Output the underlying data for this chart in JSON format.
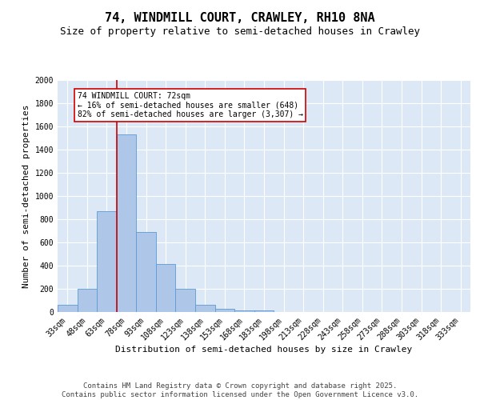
{
  "title1": "74, WINDMILL COURT, CRAWLEY, RH10 8NA",
  "title2": "Size of property relative to semi-detached houses in Crawley",
  "xlabel": "Distribution of semi-detached houses by size in Crawley",
  "ylabel": "Number of semi-detached properties",
  "categories": [
    "33sqm",
    "48sqm",
    "63sqm",
    "78sqm",
    "93sqm",
    "108sqm",
    "123sqm",
    "138sqm",
    "153sqm",
    "168sqm",
    "183sqm",
    "198sqm",
    "213sqm",
    "228sqm",
    "243sqm",
    "258sqm",
    "273sqm",
    "288sqm",
    "303sqm",
    "318sqm",
    "333sqm"
  ],
  "values": [
    65,
    200,
    870,
    1530,
    690,
    415,
    200,
    60,
    30,
    15,
    15,
    0,
    0,
    0,
    0,
    0,
    0,
    0,
    0,
    0,
    0
  ],
  "bar_color": "#aec6e8",
  "bar_edge_color": "#5b9bd5",
  "vline_color": "#cc0000",
  "ylim": [
    0,
    2000
  ],
  "yticks": [
    0,
    200,
    400,
    600,
    800,
    1000,
    1200,
    1400,
    1600,
    1800,
    2000
  ],
  "annotation_title": "74 WINDMILL COURT: 72sqm",
  "annotation_line1": "← 16% of semi-detached houses are smaller (648)",
  "annotation_line2": "82% of semi-detached houses are larger (3,307) →",
  "annotation_box_color": "#cc0000",
  "footer1": "Contains HM Land Registry data © Crown copyright and database right 2025.",
  "footer2": "Contains public sector information licensed under the Open Government Licence v3.0.",
  "plot_background": "#dce8f5",
  "fig_background": "#ffffff",
  "title1_fontsize": 11,
  "title2_fontsize": 9,
  "axis_label_fontsize": 8,
  "tick_fontsize": 7,
  "footer_fontsize": 6.5,
  "annot_fontsize": 7,
  "vline_x_data": 2.5
}
